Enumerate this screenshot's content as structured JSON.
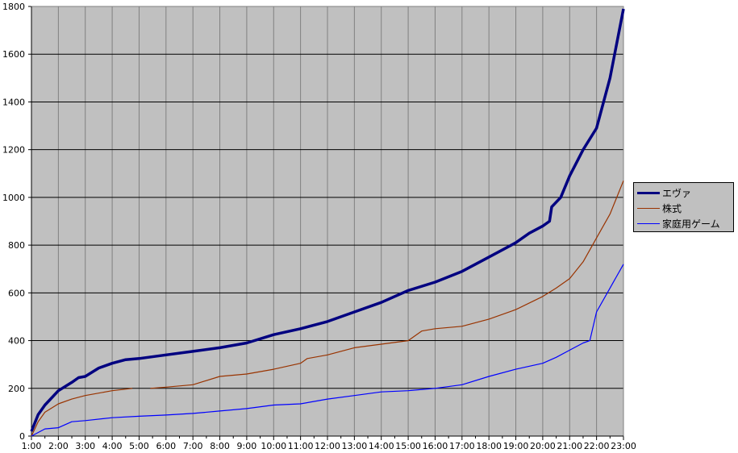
{
  "chart_data": {
    "type": "line",
    "title": "",
    "xlabel": "",
    "ylabel": "",
    "ylim": [
      0,
      1800
    ],
    "yticks": [
      0,
      200,
      400,
      600,
      800,
      1000,
      1200,
      1400,
      1600,
      1800
    ],
    "xticks": [
      "1:00",
      "2:00",
      "3:00",
      "4:00",
      "5:00",
      "6:00",
      "7:00",
      "8:00",
      "9:00",
      "10:00",
      "11:00",
      "12:00",
      "13:00",
      "14:00",
      "15:00",
      "16:00",
      "17:00",
      "18:00",
      "19:00",
      "20:00",
      "21:00",
      "22:00",
      "23:00"
    ],
    "grid": {
      "horizontal": true,
      "vertical": true
    },
    "legend": "right",
    "background": "#c0c0c0",
    "series": [
      {
        "name": "エヴァ",
        "color": "#000080",
        "width": "thick",
        "x": [
          "1:00",
          "1:15",
          "1:30",
          "2:00",
          "2:30",
          "2:45",
          "3:00",
          "3:30",
          "4:00",
          "4:30",
          "5:00",
          "6:00",
          "7:00",
          "8:00",
          "9:00",
          "10:00",
          "11:00",
          "12:00",
          "13:00",
          "14:00",
          "15:00",
          "16:00",
          "17:00",
          "18:00",
          "19:00",
          "19:30",
          "20:00",
          "20:15",
          "20:20",
          "20:40",
          "21:00",
          "21:30",
          "22:00",
          "22:30",
          "23:00"
        ],
        "y": [
          20,
          90,
          130,
          190,
          225,
          245,
          250,
          285,
          305,
          320,
          325,
          340,
          355,
          370,
          390,
          425,
          450,
          480,
          520,
          560,
          610,
          645,
          690,
          750,
          810,
          850,
          880,
          900,
          960,
          1000,
          1090,
          1200,
          1290,
          1500,
          1790
        ]
      },
      {
        "name": "株式",
        "color": "#993300",
        "width": "thin",
        "x": [
          "1:00",
          "1:15",
          "1:30",
          "2:00",
          "2:30",
          "3:00",
          "3:30",
          "4:00",
          "4:45",
          "4:50",
          "5:25",
          "6:00",
          "7:00",
          "8:00",
          "9:00",
          "10:00",
          "11:00",
          "11:15",
          "12:00",
          "13:00",
          "14:00",
          "15:00",
          "15:30",
          "16:00",
          "17:00",
          "18:00",
          "19:00",
          "20:00",
          "20:30",
          "21:00",
          "21:30",
          "22:00",
          "22:30",
          "23:00"
        ],
        "y": [
          0,
          60,
          100,
          135,
          155,
          170,
          180,
          190,
          200,
          null,
          200,
          205,
          215,
          250,
          260,
          280,
          305,
          325,
          340,
          370,
          385,
          400,
          440,
          450,
          460,
          490,
          530,
          585,
          620,
          660,
          730,
          830,
          930,
          1070
        ]
      },
      {
        "name": "家庭用ゲーム",
        "color": "#0000ff",
        "width": "thin",
        "x": [
          "1:00",
          "1:30",
          "2:00",
          "2:30",
          "3:00",
          "4:00",
          "5:00",
          "6:00",
          "7:00",
          "8:00",
          "9:00",
          "10:00",
          "11:00",
          "12:00",
          "13:00",
          "14:00",
          "15:00",
          "16:00",
          "17:00",
          "18:00",
          "19:00",
          "20:00",
          "20:30",
          "21:00",
          "21:30",
          "21:45",
          "22:00",
          "22:30",
          "23:00"
        ],
        "y": [
          0,
          30,
          35,
          60,
          65,
          77,
          83,
          88,
          95,
          105,
          115,
          130,
          135,
          155,
          170,
          185,
          190,
          200,
          215,
          250,
          280,
          305,
          330,
          360,
          390,
          400,
          520,
          620,
          720
        ]
      }
    ]
  }
}
